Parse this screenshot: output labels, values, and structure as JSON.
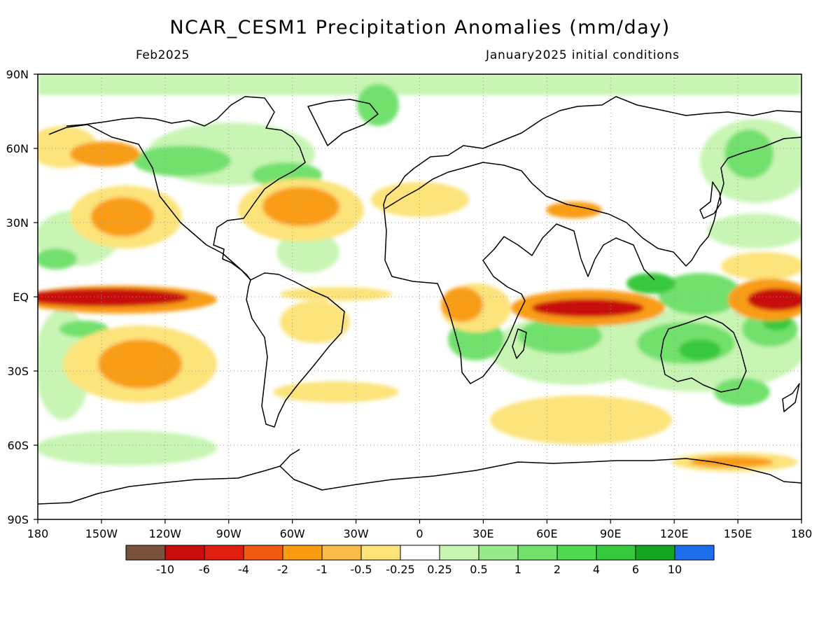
{
  "title": "NCAR_CESM1 Precipitation Anomalies (mm/day)",
  "subtitle_left": "Feb2025",
  "subtitle_right": "January2025 initial conditions",
  "y_axis_labels": [
    "90N",
    "60N",
    "30N",
    "EQ",
    "30S",
    "60S",
    "90S"
  ],
  "x_axis_labels": [
    "180",
    "150W",
    "120W",
    "90W",
    "60W",
    "30W",
    "0",
    "30E",
    "60E",
    "90E",
    "120E",
    "150E",
    "180"
  ],
  "colorbar": {
    "colors": [
      "#78523c",
      "#c80d0d",
      "#e01e10",
      "#f05a10",
      "#f99c12",
      "#f8bd48",
      "#fce37a",
      "#ffffff",
      "#c8f5b4",
      "#97e989",
      "#72e06d",
      "#4ed94e",
      "#38c83d",
      "#16a520",
      "#1e6eeb"
    ],
    "labels": [
      "-10",
      "-6",
      "-4",
      "-2",
      "-1",
      "-0.5",
      "-0.25",
      "0.25",
      "0.5",
      "1",
      "2",
      "4",
      "6",
      "10"
    ]
  },
  "legend_colors": {
    "dry_strong": "#c80d0d",
    "dry_moderate": "#f99c12",
    "dry_weak": "#fce37a",
    "wet_weak": "#c8f5b4",
    "wet_moderate": "#72e06d",
    "wet_strong": "#38c83d"
  }
}
